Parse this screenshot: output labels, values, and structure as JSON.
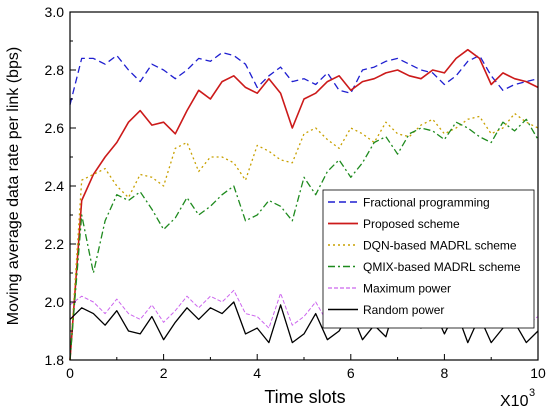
{
  "chart_data": {
    "type": "line",
    "xlabel": "Time slots",
    "x_multiplier": "X10",
    "x_multiplier_exp": "3",
    "ylabel": "Moving average data rate per link (bps)",
    "xlim": [
      0,
      10
    ],
    "ylim": [
      1.8,
      3.0
    ],
    "x_ticks": [
      "0",
      "2",
      "4",
      "6",
      "8",
      "10"
    ],
    "y_ticks": [
      "1.8",
      "2.0",
      "2.2",
      "2.4",
      "2.6",
      "2.8",
      "3.0"
    ],
    "grid": false,
    "legend_position": "right",
    "x": [
      0,
      0.25,
      0.5,
      0.75,
      1,
      1.25,
      1.5,
      1.75,
      2,
      2.25,
      2.5,
      2.75,
      3,
      3.25,
      3.5,
      3.75,
      4,
      4.25,
      4.5,
      4.75,
      5,
      5.25,
      5.5,
      5.75,
      6,
      6.25,
      6.5,
      6.75,
      7,
      7.25,
      7.5,
      7.75,
      8,
      8.25,
      8.5,
      8.75,
      9,
      9.25,
      9.5,
      9.75,
      10
    ],
    "series": [
      {
        "name": "Fractional programming",
        "color": "#1f1fd0",
        "dash": "7,4",
        "width": 1.3,
        "values": [
          2.68,
          2.84,
          2.84,
          2.82,
          2.85,
          2.8,
          2.76,
          2.82,
          2.8,
          2.77,
          2.8,
          2.84,
          2.83,
          2.86,
          2.85,
          2.82,
          2.74,
          2.78,
          2.81,
          2.76,
          2.77,
          2.75,
          2.79,
          2.73,
          2.72,
          2.8,
          2.81,
          2.83,
          2.84,
          2.82,
          2.8,
          2.79,
          2.75,
          2.78,
          2.83,
          2.85,
          2.78,
          2.73,
          2.75,
          2.76,
          2.77
        ]
      },
      {
        "name": "Proposed scheme",
        "color": "#cc1a1a",
        "dash": "",
        "width": 1.6,
        "values": [
          1.8,
          2.35,
          2.44,
          2.5,
          2.55,
          2.62,
          2.66,
          2.61,
          2.62,
          2.58,
          2.66,
          2.73,
          2.7,
          2.76,
          2.78,
          2.74,
          2.72,
          2.77,
          2.72,
          2.6,
          2.7,
          2.72,
          2.76,
          2.78,
          2.73,
          2.76,
          2.77,
          2.79,
          2.8,
          2.78,
          2.77,
          2.8,
          2.79,
          2.84,
          2.87,
          2.84,
          2.75,
          2.79,
          2.77,
          2.76,
          2.74
        ]
      },
      {
        "name": "DQN-based MADRL scheme",
        "color": "#c8a000",
        "dash": "2,3",
        "width": 1.3,
        "values": [
          1.8,
          2.42,
          2.44,
          2.46,
          2.4,
          2.36,
          2.44,
          2.43,
          2.4,
          2.53,
          2.55,
          2.45,
          2.5,
          2.5,
          2.48,
          2.42,
          2.54,
          2.52,
          2.49,
          2.48,
          2.58,
          2.6,
          2.56,
          2.53,
          2.6,
          2.58,
          2.55,
          2.62,
          2.58,
          2.57,
          2.61,
          2.63,
          2.58,
          2.6,
          2.63,
          2.64,
          2.58,
          2.6,
          2.65,
          2.62,
          2.6
        ]
      },
      {
        "name": "QMIX-based MADRL scheme",
        "color": "#1e8a1e",
        "dash": "7,3,2,3",
        "width": 1.3,
        "values": [
          1.8,
          2.3,
          2.1,
          2.28,
          2.37,
          2.35,
          2.38,
          2.32,
          2.25,
          2.29,
          2.36,
          2.3,
          2.33,
          2.37,
          2.4,
          2.28,
          2.3,
          2.35,
          2.33,
          2.28,
          2.43,
          2.37,
          2.45,
          2.49,
          2.43,
          2.48,
          2.55,
          2.57,
          2.51,
          2.58,
          2.6,
          2.59,
          2.56,
          2.62,
          2.6,
          2.57,
          2.55,
          2.62,
          2.59,
          2.63,
          2.56
        ]
      },
      {
        "name": "Maximum power",
        "color": "#cc66ee",
        "dash": "4,2",
        "width": 1.0,
        "values": [
          1.99,
          2.02,
          2.0,
          1.96,
          2.01,
          1.96,
          1.94,
          1.99,
          1.93,
          1.97,
          2.02,
          1.98,
          2.02,
          2.0,
          2.04,
          1.96,
          1.95,
          1.91,
          2.03,
          1.92,
          1.95,
          2.0,
          1.93,
          1.95,
          2.01,
          1.92,
          1.97,
          1.94,
          2.05,
          2.01,
          1.96,
          2.03,
          1.94,
          2.02,
          1.92,
          2.0,
          1.93,
          1.96,
          1.98,
          1.92,
          1.95
        ]
      },
      {
        "name": "Random power",
        "color": "#000000",
        "dash": "",
        "width": 1.3,
        "values": [
          1.94,
          1.98,
          1.96,
          1.92,
          1.97,
          1.9,
          1.89,
          1.95,
          1.87,
          1.93,
          1.98,
          1.94,
          1.98,
          1.96,
          2.0,
          1.89,
          1.91,
          1.86,
          1.99,
          1.86,
          1.89,
          1.96,
          1.87,
          1.9,
          1.97,
          1.87,
          1.92,
          1.88,
          2.02,
          1.97,
          1.91,
          1.98,
          1.89,
          1.97,
          1.86,
          1.95,
          1.86,
          1.91,
          1.93,
          1.86,
          1.9
        ]
      }
    ]
  }
}
